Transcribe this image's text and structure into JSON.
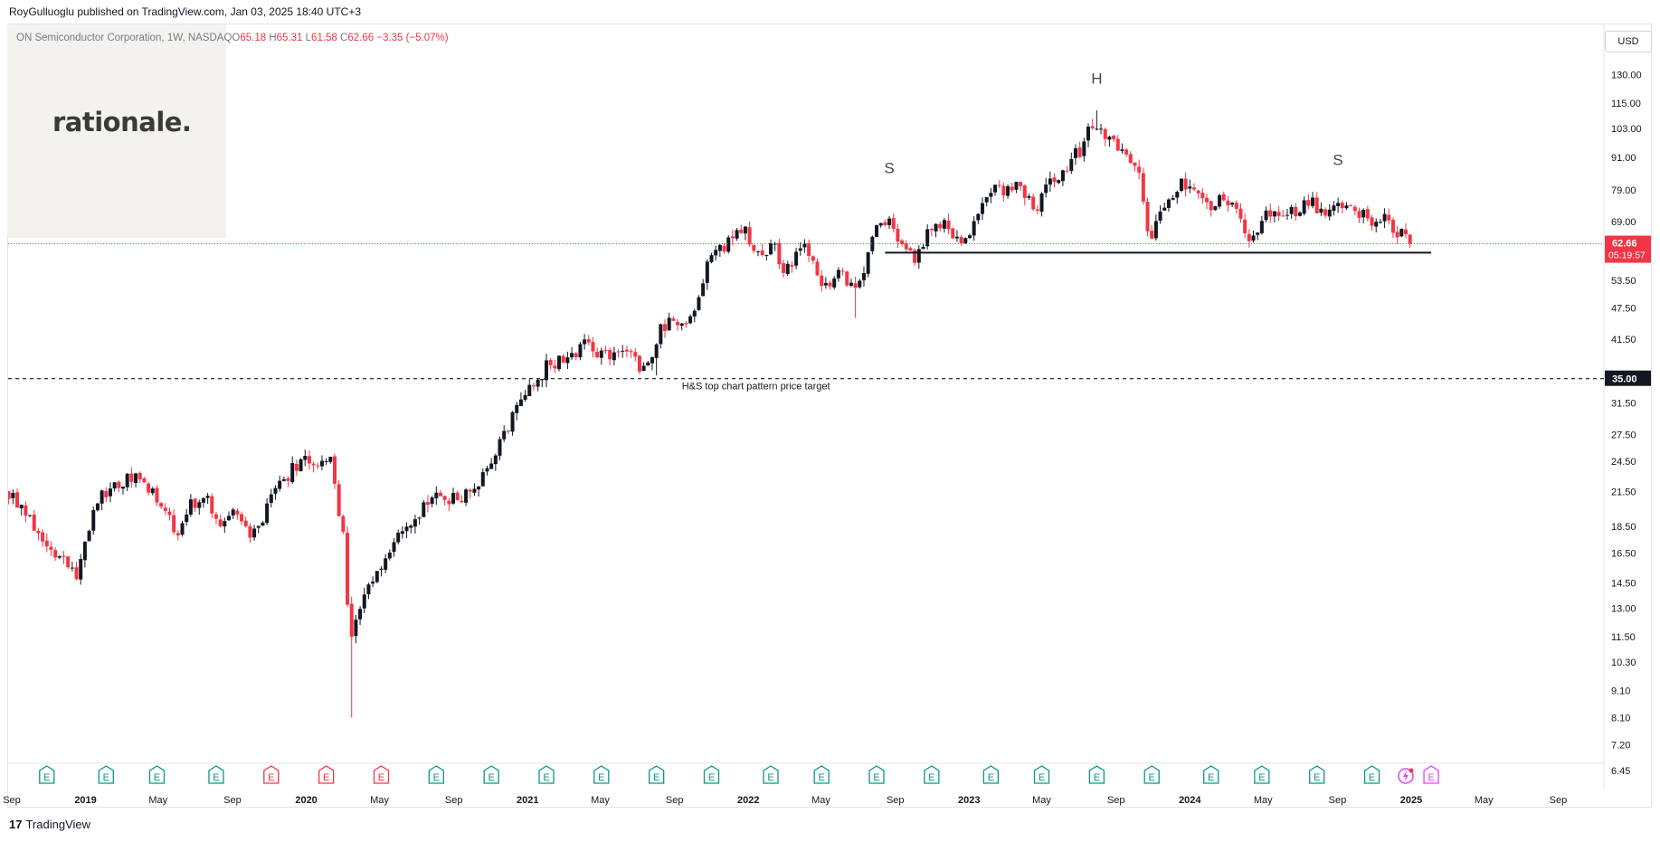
{
  "header": {
    "publisher_line": "RoyGulluoglu published on TradingView.com, Jan 03, 2025 18:40 UTC+3"
  },
  "legend": {
    "symbol": "ON Semiconductor Corporation, 1W, NASDAQ",
    "open_label": "O",
    "open": "65.18",
    "high_label": "H",
    "high": "65.31",
    "low_label": "L",
    "low": "61.58",
    "close_label": "C",
    "close": "62.66",
    "change": "−3.35 (−5.07%)"
  },
  "watermark": {
    "text": "rationale."
  },
  "currency_button": {
    "label": "USD"
  },
  "footer": {
    "brand": "TradingView",
    "mark": "17"
  },
  "colors": {
    "up": "#131722",
    "down": "#f23645",
    "price_line": "#f23645",
    "earnings_green": "#089981",
    "earnings_red": "#f23645",
    "earnings_future": "#e040fb",
    "axis_text": "#131722",
    "grid": "#ffffff"
  },
  "chart_data": {
    "type": "candlestick",
    "title": "ON Semiconductor Corporation, 1W, NASDAQ",
    "yscale": "log",
    "ylim": [
      6.2,
      142
    ],
    "y_ticks": [
      "130.00",
      "115.00",
      "103.00",
      "91.00",
      "79.00",
      "69.00",
      "53.50",
      "47.50",
      "41.50",
      "31.50",
      "27.50",
      "24.50",
      "21.50",
      "18.50",
      "16.50",
      "14.50",
      "13.00",
      "11.50",
      "10.30",
      "9.10",
      "8.10",
      "7.20",
      "6.45"
    ],
    "x_ticks": [
      {
        "label": "Sep",
        "date": "2018-09-01",
        "bold": false
      },
      {
        "label": "2019",
        "date": "2019-01-01",
        "bold": true
      },
      {
        "label": "May",
        "date": "2019-05-01",
        "bold": false
      },
      {
        "label": "Sep",
        "date": "2019-09-01",
        "bold": false
      },
      {
        "label": "2020",
        "date": "2020-01-01",
        "bold": true
      },
      {
        "label": "May",
        "date": "2020-05-01",
        "bold": false
      },
      {
        "label": "Sep",
        "date": "2020-09-01",
        "bold": false
      },
      {
        "label": "2021",
        "date": "2021-01-01",
        "bold": true
      },
      {
        "label": "May",
        "date": "2021-05-01",
        "bold": false
      },
      {
        "label": "Sep",
        "date": "2021-09-01",
        "bold": false
      },
      {
        "label": "2022",
        "date": "2022-01-01",
        "bold": true
      },
      {
        "label": "May",
        "date": "2022-05-01",
        "bold": false
      },
      {
        "label": "Sep",
        "date": "2022-09-01",
        "bold": false
      },
      {
        "label": "2023",
        "date": "2023-01-01",
        "bold": true
      },
      {
        "label": "May",
        "date": "2023-05-01",
        "bold": false
      },
      {
        "label": "Sep",
        "date": "2023-09-01",
        "bold": false
      },
      {
        "label": "2024",
        "date": "2024-01-01",
        "bold": true
      },
      {
        "label": "May",
        "date": "2024-05-01",
        "bold": false
      },
      {
        "label": "Sep",
        "date": "2024-09-01",
        "bold": false
      },
      {
        "label": "2025",
        "date": "2025-01-01",
        "bold": true
      },
      {
        "label": "May",
        "date": "2025-05-01",
        "bold": false
      },
      {
        "label": "Sep",
        "date": "2025-09-01",
        "bold": false
      }
    ],
    "price_path": [
      [
        "2018-08-27",
        21.5
      ],
      [
        "2018-09-24",
        19.5
      ],
      [
        "2018-11-05",
        17.0
      ],
      [
        "2018-12-24",
        15.0
      ],
      [
        "2019-01-14",
        19.0
      ],
      [
        "2019-02-04",
        21.5
      ],
      [
        "2019-03-11",
        22.5
      ],
      [
        "2019-04-01",
        23.0
      ],
      [
        "2019-05-13",
        20.0
      ],
      [
        "2019-06-03",
        17.8
      ],
      [
        "2019-06-24",
        20.0
      ],
      [
        "2019-07-22",
        21.5
      ],
      [
        "2019-08-12",
        18.0
      ],
      [
        "2019-09-09",
        19.5
      ],
      [
        "2019-10-07",
        17.5
      ],
      [
        "2019-11-04",
        20.5
      ],
      [
        "2019-12-09",
        23.5
      ],
      [
        "2020-01-13",
        24.8
      ],
      [
        "2020-01-27",
        24.5
      ],
      [
        "2020-02-17",
        24.5
      ],
      [
        "2020-02-24",
        21.0
      ],
      [
        "2020-03-09",
        16.5
      ],
      [
        "2020-03-16",
        11.0
      ],
      [
        "2020-03-23",
        11.8
      ],
      [
        "2020-04-06",
        13.5
      ],
      [
        "2020-04-27",
        14.5
      ],
      [
        "2020-05-18",
        16.5
      ],
      [
        "2020-06-15",
        18.5
      ],
      [
        "2020-07-06",
        19.5
      ],
      [
        "2020-08-10",
        21.0
      ],
      [
        "2020-09-07",
        21.0
      ],
      [
        "2020-10-05",
        21.5
      ],
      [
        "2020-10-26",
        23.0
      ],
      [
        "2020-11-16",
        26.0
      ],
      [
        "2020-12-14",
        30.0
      ],
      [
        "2021-01-11",
        33.5
      ],
      [
        "2021-02-08",
        37.5
      ],
      [
        "2021-03-08",
        38.0
      ],
      [
        "2021-04-12",
        41.0
      ],
      [
        "2021-05-10",
        38.0
      ],
      [
        "2021-05-31",
        40.5
      ],
      [
        "2021-06-21",
        38.5
      ],
      [
        "2021-07-19",
        36.5
      ],
      [
        "2021-08-09",
        43.0
      ],
      [
        "2021-09-06",
        45.5
      ],
      [
        "2021-10-04",
        45.5
      ],
      [
        "2021-11-01",
        58.0
      ],
      [
        "2021-12-06",
        63.0
      ],
      [
        "2021-12-27",
        67.0
      ],
      [
        "2022-01-24",
        58.0
      ],
      [
        "2022-02-14",
        62.0
      ],
      [
        "2022-03-07",
        56.0
      ],
      [
        "2022-04-04",
        63.0
      ],
      [
        "2022-05-09",
        52.0
      ],
      [
        "2022-06-06",
        56.0
      ],
      [
        "2022-06-27",
        51.0
      ],
      [
        "2022-07-11",
        53.0
      ],
      [
        "2022-08-01",
        66.0
      ],
      [
        "2022-08-22",
        70.0
      ],
      [
        "2022-09-19",
        62.0
      ],
      [
        "2022-10-10",
        58.0
      ],
      [
        "2022-11-07",
        70.0
      ],
      [
        "2022-12-05",
        66.0
      ],
      [
        "2022-12-26",
        62.0
      ],
      [
        "2023-01-23",
        74.0
      ],
      [
        "2023-02-13",
        80.0
      ],
      [
        "2023-03-13",
        79.0
      ],
      [
        "2023-04-03",
        80.0
      ],
      [
        "2023-04-24",
        70.0
      ],
      [
        "2023-05-15",
        82.0
      ],
      [
        "2023-06-12",
        87.0
      ],
      [
        "2023-07-10",
        95.0
      ],
      [
        "2023-07-31",
        107.0
      ],
      [
        "2023-08-21",
        97.0
      ],
      [
        "2023-09-11",
        95.0
      ],
      [
        "2023-10-09",
        89.0
      ],
      [
        "2023-10-30",
        64.0
      ],
      [
        "2023-11-20",
        72.0
      ],
      [
        "2023-12-18",
        82.0
      ],
      [
        "2024-01-15",
        77.0
      ],
      [
        "2024-02-05",
        74.0
      ],
      [
        "2024-02-26",
        78.0
      ],
      [
        "2024-03-18",
        72.0
      ],
      [
        "2024-04-15",
        63.0
      ],
      [
        "2024-05-06",
        70.0
      ],
      [
        "2024-06-03",
        71.0
      ],
      [
        "2024-07-01",
        73.0
      ],
      [
        "2024-07-22",
        76.0
      ],
      [
        "2024-08-12",
        71.0
      ],
      [
        "2024-09-02",
        74.0
      ],
      [
        "2024-09-30",
        73.0
      ],
      [
        "2024-10-28",
        70.0
      ],
      [
        "2024-11-25",
        69.0
      ],
      [
        "2024-12-16",
        66.0
      ],
      [
        "2024-12-30",
        62.66
      ]
    ],
    "extreme_lows": [
      {
        "date": "2020-03-16",
        "low": 8.1
      },
      {
        "date": "2022-06-27",
        "low": 45.5
      },
      {
        "date": "2021-08-02",
        "low": 35.5
      }
    ],
    "extreme_highs": [
      {
        "date": "2023-07-31",
        "high": 111.5
      }
    ],
    "last_candle": {
      "date": "2024-12-30",
      "open": 65.18,
      "high": 65.31,
      "low": 61.58,
      "close": 62.66
    },
    "annotations": {
      "letters": [
        {
          "text": "S",
          "date": "2022-08-22",
          "price": 85
        },
        {
          "text": "H",
          "date": "2023-07-31",
          "price": 125
        },
        {
          "text": "S",
          "date": "2024-09-02",
          "price": 88
        }
      ],
      "neckline": {
        "start": "2022-08-15",
        "end": "2025-02-03",
        "price": 60.3
      },
      "target_line": {
        "price": 35.0,
        "label": "H&S top chart pattern price target",
        "label_date": "2021-09-13"
      },
      "price_label": {
        "price": "62.66",
        "countdown": "05:19:57"
      },
      "target_price_label": "35.00"
    },
    "earnings": [
      {
        "date": "2018-10-29",
        "kind": "green",
        "text": "E"
      },
      {
        "date": "2019-02-04",
        "kind": "green",
        "text": "E"
      },
      {
        "date": "2019-04-29",
        "kind": "green",
        "text": "E"
      },
      {
        "date": "2019-08-05",
        "kind": "green",
        "text": "E"
      },
      {
        "date": "2019-11-04",
        "kind": "red",
        "text": "E"
      },
      {
        "date": "2020-02-03",
        "kind": "red",
        "text": "E"
      },
      {
        "date": "2020-05-04",
        "kind": "red",
        "text": "E"
      },
      {
        "date": "2020-08-03",
        "kind": "green",
        "text": "E"
      },
      {
        "date": "2020-11-02",
        "kind": "green",
        "text": "E"
      },
      {
        "date": "2021-02-01",
        "kind": "green",
        "text": "E"
      },
      {
        "date": "2021-05-03",
        "kind": "green",
        "text": "E"
      },
      {
        "date": "2021-08-02",
        "kind": "green",
        "text": "E"
      },
      {
        "date": "2021-11-01",
        "kind": "green",
        "text": "E"
      },
      {
        "date": "2022-02-07",
        "kind": "green",
        "text": "E"
      },
      {
        "date": "2022-05-02",
        "kind": "green",
        "text": "E"
      },
      {
        "date": "2022-08-01",
        "kind": "green",
        "text": "E"
      },
      {
        "date": "2022-10-31",
        "kind": "green",
        "text": "E"
      },
      {
        "date": "2023-02-06",
        "kind": "green",
        "text": "E"
      },
      {
        "date": "2023-05-01",
        "kind": "green",
        "text": "E"
      },
      {
        "date": "2023-07-31",
        "kind": "green",
        "text": "E"
      },
      {
        "date": "2023-10-30",
        "kind": "green",
        "text": "E"
      },
      {
        "date": "2024-02-05",
        "kind": "green",
        "text": "E"
      },
      {
        "date": "2024-04-29",
        "kind": "green",
        "text": "E"
      },
      {
        "date": "2024-07-29",
        "kind": "green",
        "text": "E"
      },
      {
        "date": "2024-10-28",
        "kind": "green",
        "text": "E"
      },
      {
        "date": "2024-12-23",
        "kind": "split",
        "text": ""
      },
      {
        "date": "2025-02-03",
        "kind": "future",
        "text": "E"
      }
    ]
  }
}
